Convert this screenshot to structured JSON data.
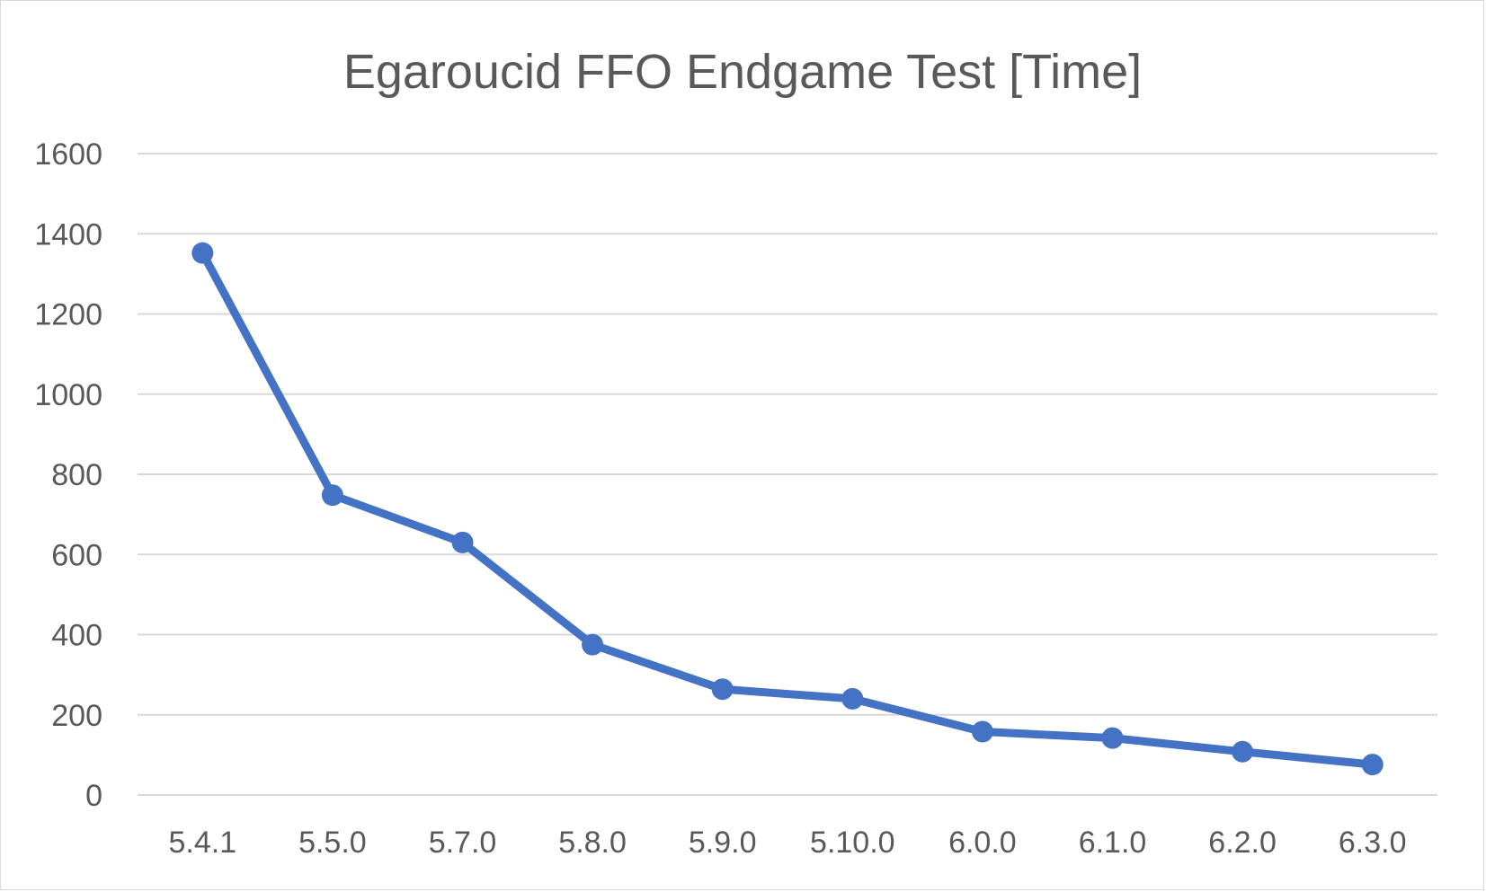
{
  "chart_data": {
    "type": "line",
    "title": "Egaroucid FFO Endgame Test [Time]",
    "xlabel": "",
    "ylabel": "",
    "categories": [
      "5.4.1",
      "5.5.0",
      "5.7.0",
      "5.8.0",
      "5.9.0",
      "5.10.0",
      "6.0.0",
      "6.1.0",
      "6.2.0",
      "6.3.0"
    ],
    "series": [
      {
        "values": [
          1352,
          748,
          630,
          375,
          264,
          240,
          158,
          142,
          108,
          76
        ],
        "color": "#4472c4"
      }
    ],
    "ylim": [
      0,
      1600
    ],
    "yticks": [
      "0",
      "200",
      "400",
      "600",
      "800",
      "1000",
      "1200",
      "1400",
      "1600"
    ],
    "grid": true,
    "legend": "none"
  }
}
